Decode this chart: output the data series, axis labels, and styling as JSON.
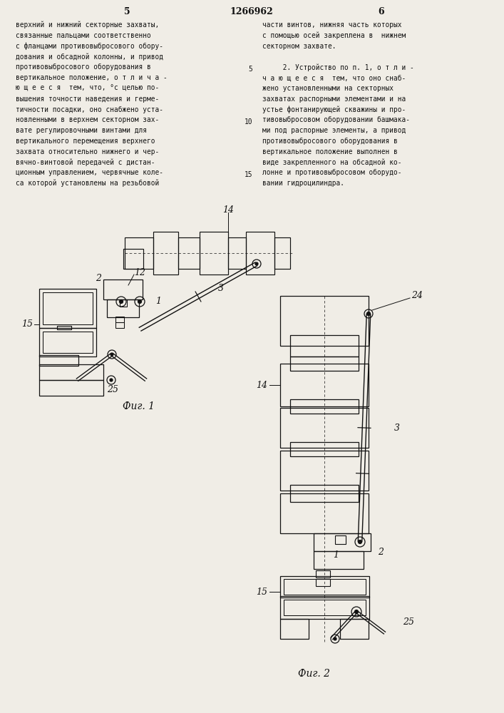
{
  "page_num_left": "5",
  "page_num_center": "1266962",
  "page_num_right": "6",
  "text_left": [
    "верхний и нижний секторные захваты,",
    "связанные пальцами соответственно",
    "с фланцами противовыбросового обору-",
    "дования и обсадной колонны, и привод",
    "противовыбросового оборудования в",
    "вертикальное положение, о т л и ч а -",
    "ю щ е е с я  тем, что, °с целью по-",
    "вышения точности наведения и герме-",
    "тичности посадки, оно снабжено уста-",
    "новленными в верхнем секторном зах-",
    "вате регулировочными винтами для",
    "вертикального перемещения верхнего",
    "захвата относительно нижнего и чер-",
    "вячно-винтовой передачей с дистан-",
    "ционным управлением, червячные коле-",
    "са которой установлены на резьбовой"
  ],
  "text_right": [
    "части винтов, нижняя часть которых",
    "с помощью осей закреплена в  нижнем",
    "секторном захвате.",
    "",
    "     2. Устройство по п. 1, о т л и -",
    "ч а ю щ е е с я  тем, что оно снаб-",
    "жено установленными на секторных",
    "захватах распорными элементами и на",
    "устье фонтанирующей скважины и про-",
    "тивовыбросовом оборудовании башмака-",
    "ми под распорные элементы, а привод",
    "противовыбросового оборудования в",
    "вертикальное положение выполнен в",
    "виде закрепленного на обсадной ко-",
    "лонне и противовыбросовом оборудо-",
    "вании гидроцилиндра."
  ],
  "fig1_caption": "Фиг. 1",
  "fig2_caption": "Фиг. 2",
  "bg_color": "#f0ede6",
  "text_color": "#111111",
  "draw_color": "#111111"
}
